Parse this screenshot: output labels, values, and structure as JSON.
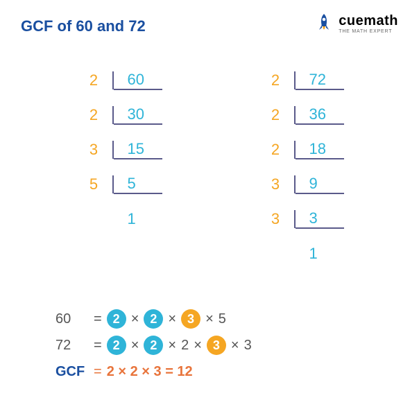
{
  "title": {
    "text": "GCF of 60 and 72",
    "color": "#1a4fa0"
  },
  "logo": {
    "name": "cuemath",
    "tagline": "THE MATH EXPERT",
    "rocket_body": "#1a4fa0",
    "rocket_flame": "#f5a623",
    "text_color": "#2a2a2a"
  },
  "colors": {
    "divisor": "#f5a623",
    "quotient": "#2fb4d8",
    "border": "#5a5a8a",
    "eq_text": "#555555",
    "circle_blue": "#2fb4d8",
    "circle_orange": "#f5a623",
    "gcf_label": "#1a4fa0",
    "gcf_value": "#e8743b"
  },
  "table_left": {
    "rows": [
      {
        "divisor": "2",
        "quotient": "60"
      },
      {
        "divisor": "2",
        "quotient": "30"
      },
      {
        "divisor": "3",
        "quotient": "15"
      },
      {
        "divisor": "5",
        "quotient": "5"
      },
      {
        "divisor": "",
        "quotient": "1"
      }
    ]
  },
  "table_right": {
    "rows": [
      {
        "divisor": "2",
        "quotient": "72"
      },
      {
        "divisor": "2",
        "quotient": "36"
      },
      {
        "divisor": "2",
        "quotient": "18"
      },
      {
        "divisor": "3",
        "quotient": "9"
      },
      {
        "divisor": "3",
        "quotient": "3"
      },
      {
        "divisor": "",
        "quotient": "1"
      }
    ]
  },
  "equations": {
    "line1": {
      "label": "60",
      "factors": [
        {
          "text": "2",
          "circle": "blue"
        },
        {
          "text": "2",
          "circle": "blue"
        },
        {
          "text": "3",
          "circle": "orange"
        },
        {
          "text": "5",
          "circle": null
        }
      ]
    },
    "line2": {
      "label": "72",
      "factors": [
        {
          "text": "2",
          "circle": "blue"
        },
        {
          "text": "2",
          "circle": "blue"
        },
        {
          "text": "2",
          "circle": null
        },
        {
          "text": "3",
          "circle": "orange"
        },
        {
          "text": "3",
          "circle": null
        }
      ]
    },
    "gcf": {
      "label": "GCF",
      "expr": "2 × 2 × 3 = 12"
    }
  }
}
